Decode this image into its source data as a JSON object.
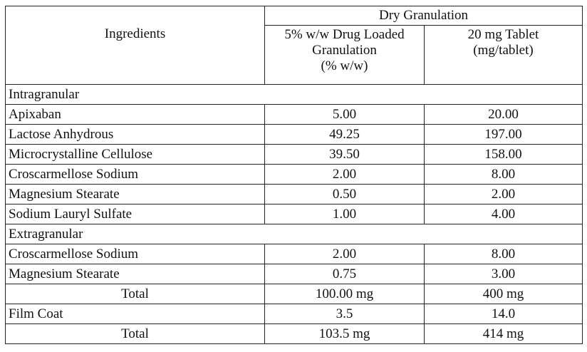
{
  "header": {
    "ingredients": "Ingredients",
    "dry_granulation": "Dry Granulation",
    "col2_line1": "5% w/w Drug Loaded",
    "col2_line2": "Granulation",
    "col2_line3": "(% w/w)",
    "col3_line1": "20 mg Tablet",
    "col3_line2": "(mg/tablet)"
  },
  "rows": [
    {
      "type": "section",
      "label": "Intragranular"
    },
    {
      "type": "item",
      "label": "Apixaban",
      "pct": "5.00",
      "mg": "20.00"
    },
    {
      "type": "item",
      "label": "Lactose Anhydrous",
      "pct": "49.25",
      "mg": "197.00"
    },
    {
      "type": "item",
      "label": "Microcrystalline Cellulose",
      "pct": "39.50",
      "mg": "158.00"
    },
    {
      "type": "item",
      "label": "Croscarmellose Sodium",
      "pct": "2.00",
      "mg": "8.00"
    },
    {
      "type": "item",
      "label": "Magnesium Stearate",
      "pct": "0.50",
      "mg": "2.00"
    },
    {
      "type": "item",
      "label": "Sodium Lauryl Sulfate",
      "pct": "1.00",
      "mg": "4.00"
    },
    {
      "type": "section",
      "label": "Extragranular"
    },
    {
      "type": "item",
      "label": "Croscarmellose Sodium",
      "pct": "2.00",
      "mg": "8.00"
    },
    {
      "type": "item",
      "label": "Magnesium Stearate",
      "pct": "0.75",
      "mg": "3.00"
    },
    {
      "type": "total",
      "label": "Total",
      "pct": "100.00 mg",
      "mg": "400 mg"
    },
    {
      "type": "item",
      "label": "Film Coat",
      "pct": "3.5",
      "mg": "14.0"
    },
    {
      "type": "total",
      "label": "Total",
      "pct": "103.5 mg",
      "mg": "414 mg"
    }
  ]
}
